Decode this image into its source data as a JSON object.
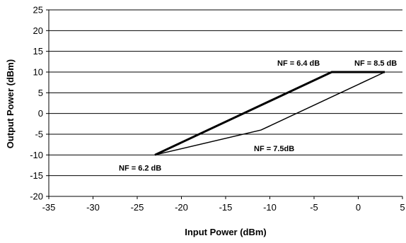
{
  "chart_data": {
    "type": "line",
    "xlabel": "Input Power (dBm)",
    "ylabel": "Output Power (dBm)",
    "xlim": [
      -35,
      5
    ],
    "ylim": [
      -20,
      25
    ],
    "xticks": [
      -35,
      -30,
      -25,
      -20,
      -15,
      -10,
      -5,
      0,
      5
    ],
    "yticks": [
      -20,
      -15,
      -10,
      -5,
      0,
      5,
      10,
      15,
      20,
      25
    ],
    "grid": "horizontal",
    "legend": "none",
    "series": [
      {
        "style": "thick",
        "x": [
          -23,
          -3,
          3
        ],
        "y": [
          -10,
          10,
          10
        ]
      },
      {
        "style": "thin",
        "x": [
          -23,
          -11,
          3
        ],
        "y": [
          -10,
          -4,
          10
        ]
      }
    ],
    "annotations": [
      {
        "text": "NF = 6.2 dB",
        "x": -23,
        "y": -10
      },
      {
        "text": "NF = 6.4 dB",
        "x": -3,
        "y": 10
      },
      {
        "text": "NF =  8.5 dB",
        "x": 3,
        "y": 10
      },
      {
        "text": "NF = 7.5dB",
        "x": -11,
        "y": -4
      }
    ]
  }
}
